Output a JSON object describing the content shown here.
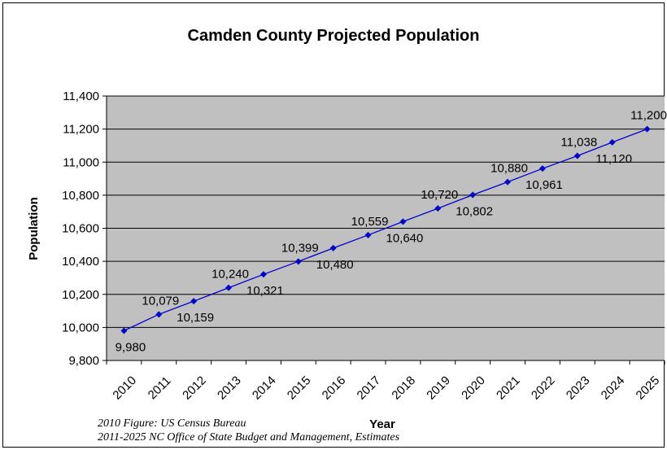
{
  "chart_data": {
    "type": "line",
    "title": "Camden County Projected Population",
    "xlabel": "Year",
    "ylabel": "Population",
    "categories": [
      "2010",
      "2011",
      "2012",
      "2013",
      "2014",
      "2015",
      "2016",
      "2017",
      "2018",
      "2019",
      "2020",
      "2021",
      "2022",
      "2023",
      "2024",
      "2025"
    ],
    "series": [
      {
        "values": [
          9980,
          10079,
          10159,
          10240,
          10321,
          10399,
          10480,
          10559,
          10640,
          10720,
          10802,
          10880,
          10961,
          11038,
          11120,
          11200
        ],
        "data_labels": [
          "9,980",
          "10,079",
          "10,159",
          "10,240",
          "10,321",
          "10,399",
          "10,480",
          "10,559",
          "10,640",
          "10,720",
          "10,802",
          "10,880",
          "10,961",
          "11,038",
          "11,120",
          "11,200"
        ],
        "color": "#0000CC"
      }
    ],
    "ylim": [
      9800,
      11400
    ],
    "yticks": [
      9800,
      10000,
      10200,
      10400,
      10600,
      10800,
      11000,
      11200,
      11400
    ],
    "ytick_labels": [
      "9,800",
      "10,000",
      "10,200",
      "10,400",
      "10,600",
      "10,800",
      "11,000",
      "11,200",
      "11,400"
    ],
    "grid": true,
    "plot_background": "#C0C0C0"
  },
  "sources": {
    "line1": "2010 Figure:  US Census Bureau",
    "line2": "2011-2025 NC Office of State Budget and Management, Estimates"
  }
}
